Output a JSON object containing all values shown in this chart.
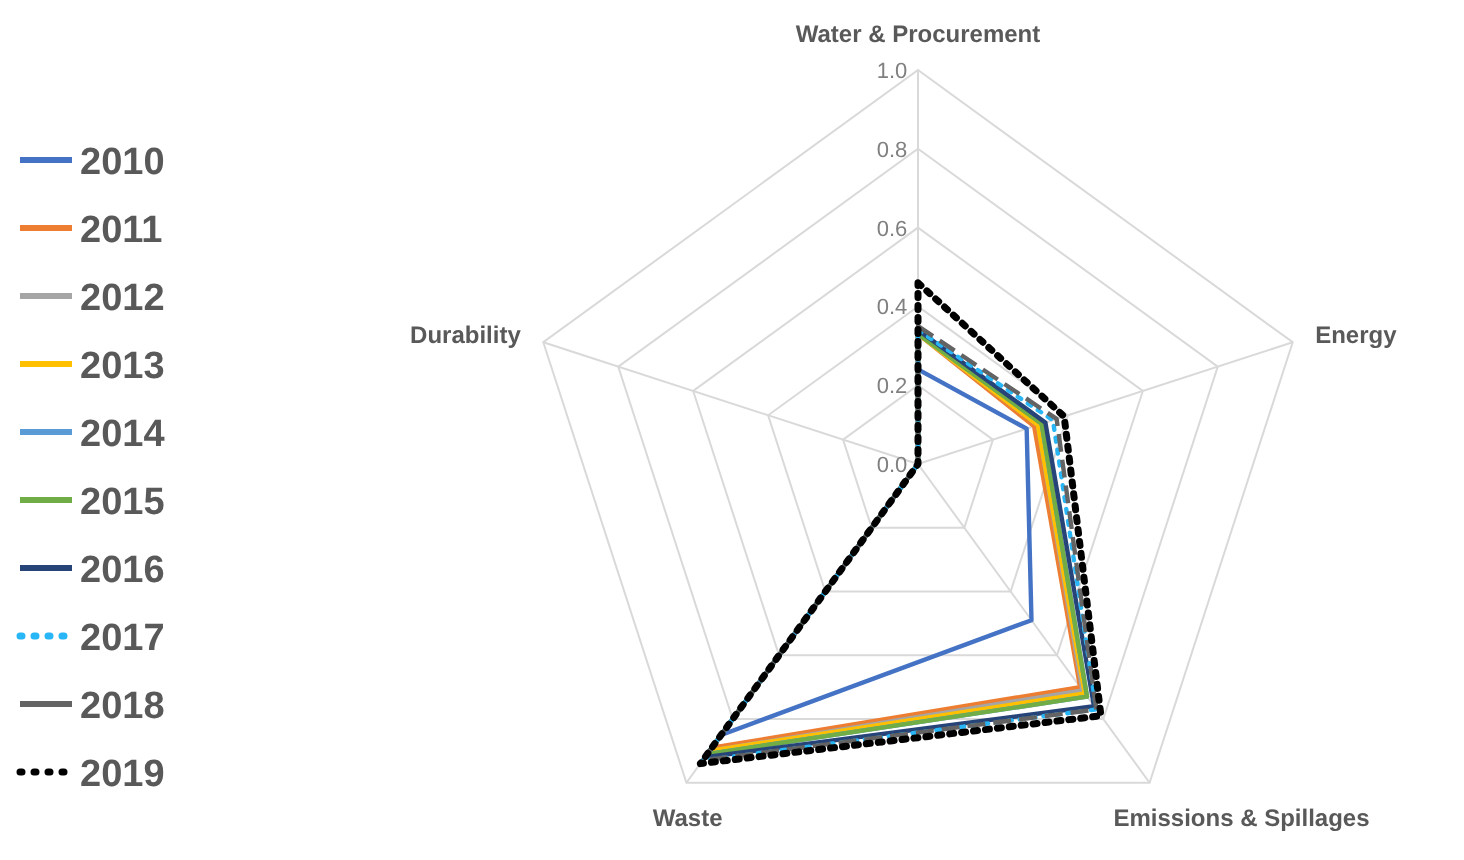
{
  "chart_data": {
    "type": "radar",
    "categories": [
      "Water & Procurement",
      "Energy",
      "Emissions & Spillages",
      "Waste",
      "Durability"
    ],
    "ylim": [
      0,
      1
    ],
    "yticks": [
      {
        "value": 0,
        "label": "0.0"
      },
      {
        "value": 0.2,
        "label": "0.2"
      },
      {
        "value": 0.4,
        "label": "0.4"
      },
      {
        "value": 0.6,
        "label": "0.6"
      },
      {
        "value": 0.8,
        "label": "0.8"
      },
      {
        "value": 1,
        "label": "1.0"
      }
    ],
    "grid": true,
    "legend": "left",
    "marker": "none",
    "series": [
      {
        "name": "2010",
        "color": "#4472c4",
        "line_style": "solid",
        "values": [
          0.24,
          0.29,
          0.49,
          0.85,
          0
        ]
      },
      {
        "name": "2011",
        "color": "#ed7d31",
        "line_style": "solid",
        "values": [
          0.33,
          0.31,
          0.7,
          0.89,
          0
        ]
      },
      {
        "name": "2012",
        "color": "#a5a5a5",
        "line_style": "solid",
        "values": [
          0.33,
          0.32,
          0.71,
          0.9,
          0
        ]
      },
      {
        "name": "2013",
        "color": "#ffc000",
        "line_style": "solid",
        "values": [
          0.33,
          0.32,
          0.72,
          0.9,
          0
        ]
      },
      {
        "name": "2014",
        "color": "#5b9bd5",
        "line_style": "solid",
        "values": [
          0.34,
          0.33,
          0.73,
          0.91,
          0
        ]
      },
      {
        "name": "2015",
        "color": "#70ad47",
        "line_style": "solid",
        "values": [
          0.33,
          0.33,
          0.73,
          0.91,
          0
        ]
      },
      {
        "name": "2016",
        "color": "#264478",
        "line_style": "solid",
        "values": [
          0.34,
          0.34,
          0.76,
          0.92,
          0
        ]
      },
      {
        "name": "2017",
        "color": "#29b6f6",
        "line_style": "dotted",
        "values": [
          0.34,
          0.36,
          0.77,
          0.93,
          0
        ]
      },
      {
        "name": "2018",
        "color": "#636363",
        "line_style": "dashed",
        "values": [
          0.35,
          0.37,
          0.77,
          0.93,
          0
        ]
      },
      {
        "name": "2019",
        "color": "#000000",
        "line_style": "dotted",
        "values": [
          0.46,
          0.39,
          0.79,
          0.94,
          0
        ]
      }
    ]
  }
}
